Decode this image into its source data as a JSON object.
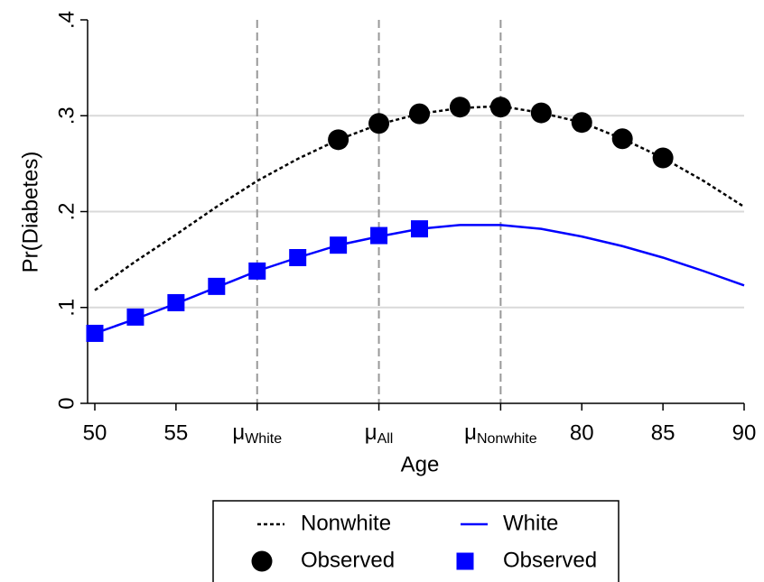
{
  "chart_data": {
    "type": "line",
    "xlabel": "Age",
    "ylabel": "Pr(Diabetes)",
    "xlim": [
      50,
      90
    ],
    "ylim": [
      0,
      0.4
    ],
    "xticks": [
      50,
      55,
      {
        "value": 60,
        "label": "μ",
        "subscript": "White"
      },
      {
        "value": 67.5,
        "label": "μ",
        "subscript": "All"
      },
      {
        "value": 75,
        "label": "μ",
        "subscript": "Nonwhite"
      },
      80,
      85,
      90
    ],
    "yticks": [
      0,
      {
        "value": 0.1,
        "label": ".1"
      },
      {
        "value": 0.2,
        "label": ".2"
      },
      {
        "value": 0.3,
        "label": ".3"
      },
      {
        "value": 0.4,
        "label": ".4"
      }
    ],
    "grid": true,
    "reference_lines": [
      60,
      67.5,
      75
    ],
    "legend": "bottom",
    "series": [
      {
        "name": "Nonwhite",
        "color": "#000000",
        "line_style": "dotted",
        "x": [
          50,
          52.5,
          55,
          57.5,
          60,
          62.5,
          65,
          67.5,
          70,
          72.5,
          75,
          77.5,
          80,
          82.5,
          85,
          87.5,
          90
        ],
        "values": [
          0.118,
          0.148,
          0.176,
          0.205,
          0.232,
          0.255,
          0.275,
          0.291,
          0.302,
          0.308,
          0.31,
          0.303,
          0.293,
          0.276,
          0.256,
          0.232,
          0.205
        ]
      },
      {
        "name": "White",
        "color": "#0000ff",
        "line_style": "solid",
        "x": [
          50,
          52.5,
          55,
          57.5,
          60,
          62.5,
          65,
          67.5,
          70,
          72.5,
          75,
          77.5,
          80,
          82.5,
          85,
          87.5,
          90
        ],
        "values": [
          0.073,
          0.088,
          0.104,
          0.121,
          0.138,
          0.152,
          0.165,
          0.174,
          0.182,
          0.186,
          0.186,
          0.182,
          0.174,
          0.164,
          0.152,
          0.138,
          0.123
        ]
      },
      {
        "name": "Observed",
        "color": "#000000",
        "marker": "circle",
        "x": [
          65,
          67.5,
          70,
          72.5,
          75,
          77.5,
          80,
          82.5,
          85
        ],
        "values": [
          0.275,
          0.292,
          0.302,
          0.309,
          0.309,
          0.303,
          0.293,
          0.276,
          0.256
        ]
      },
      {
        "name": "Observed",
        "color": "#0000ff",
        "marker": "square",
        "x": [
          50,
          52.5,
          55,
          57.5,
          60,
          62.5,
          65,
          67.5,
          70
        ],
        "values": [
          0.073,
          0.09,
          0.105,
          0.122,
          0.138,
          0.152,
          0.165,
          0.175,
          0.182
        ]
      }
    ]
  }
}
